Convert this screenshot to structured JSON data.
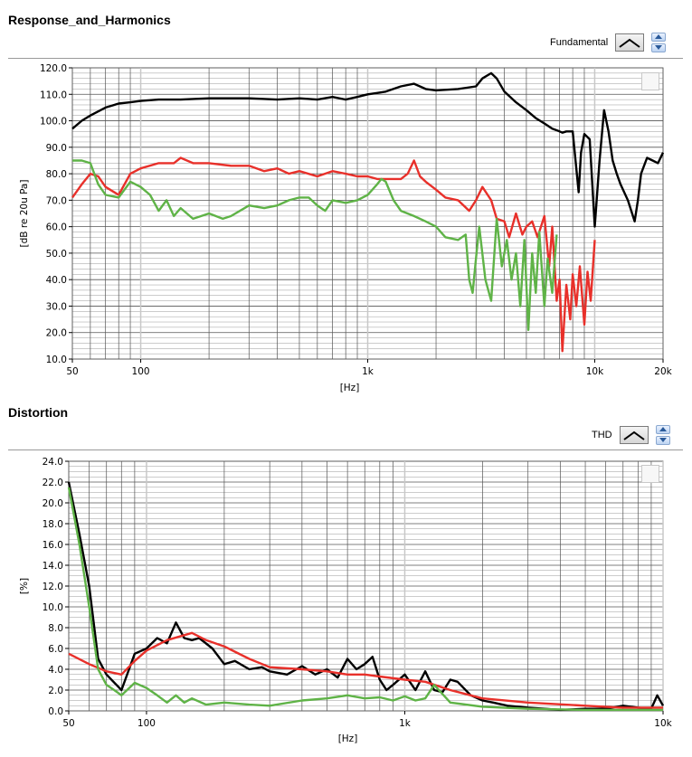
{
  "sections": [
    {
      "title": "Response_and_Harmonics",
      "legend_label": "Fundamental"
    },
    {
      "title": "Distortion",
      "legend_label": "THD"
    }
  ],
  "chart_data": [
    {
      "type": "line",
      "title": "Response_and_Harmonics",
      "xlabel": "[Hz]",
      "ylabel": "[dB re 20u Pa]",
      "xscale": "log",
      "xlim": [
        50,
        20000
      ],
      "ylim": [
        10,
        120
      ],
      "y_ticks": [
        "120.0",
        "110.0",
        "100.0",
        "90.0",
        "80.0",
        "70.0",
        "60.0",
        "50.0",
        "40.0",
        "30.0",
        "20.0",
        "10.0"
      ],
      "x_ticks": [
        "50",
        "100",
        "1k",
        "10k",
        "20k"
      ],
      "grid": true,
      "legend": "Fundamental",
      "series": [
        {
          "color": "#000000",
          "x": [
            50,
            55,
            60,
            70,
            80,
            90,
            100,
            120,
            150,
            200,
            300,
            400,
            500,
            600,
            700,
            800,
            900,
            1000,
            1100,
            1200,
            1400,
            1600,
            1800,
            2000,
            2500,
            3000,
            3200,
            3500,
            3700,
            4000,
            4500,
            5000,
            5500,
            6000,
            6500,
            7000,
            7200,
            7500,
            8000,
            8500,
            8700,
            9000,
            9500,
            10000,
            10500,
            11000,
            11500,
            12000,
            12500,
            13000,
            14000,
            15000,
            15500,
            16000,
            17000,
            18000,
            19000,
            20000
          ],
          "y": [
            97,
            100,
            102,
            105,
            106.5,
            107,
            107.5,
            108,
            108,
            108.5,
            108.5,
            108,
            108.5,
            108,
            109,
            108,
            109,
            110,
            110.5,
            111,
            113,
            114,
            112,
            111.5,
            112,
            113,
            116,
            118,
            116,
            111,
            107,
            104,
            101,
            99,
            97,
            96,
            95.5,
            96,
            96,
            73,
            88,
            95,
            93,
            60,
            85,
            104,
            96,
            85,
            80,
            76,
            70,
            62,
            70,
            80,
            86,
            85,
            84,
            88
          ]
        },
        {
          "color": "#e8302a",
          "x": [
            50,
            55,
            60,
            65,
            70,
            80,
            90,
            100,
            120,
            140,
            150,
            170,
            200,
            250,
            300,
            350,
            400,
            450,
            500,
            600,
            700,
            800,
            900,
            1000,
            1100,
            1200,
            1400,
            1500,
            1600,
            1700,
            1800,
            2000,
            2200,
            2500,
            2800,
            3000,
            3200,
            3500,
            3700,
            4000,
            4200,
            4500,
            4800,
            5000,
            5300,
            5600,
            6000,
            6300,
            6500,
            6800,
            7000,
            7200,
            7500,
            7800,
            8000,
            8300,
            8600,
            9000,
            9300,
            9600,
            10000
          ],
          "y": [
            71,
            76,
            80,
            79,
            75,
            72,
            80,
            82,
            84,
            84,
            86,
            84,
            84,
            83,
            83,
            81,
            82,
            80,
            81,
            79,
            81,
            80,
            79,
            79,
            78,
            78,
            78,
            80,
            85,
            79,
            77,
            74,
            71,
            70,
            66,
            70,
            75,
            70,
            63,
            62,
            56,
            65,
            57,
            60,
            62,
            56,
            64,
            45,
            60,
            32,
            40,
            13,
            38,
            25,
            42,
            30,
            45,
            23,
            43,
            32,
            55
          ]
        },
        {
          "color": "#5fb347",
          "x": [
            50,
            55,
            60,
            65,
            70,
            80,
            90,
            100,
            110,
            120,
            130,
            140,
            150,
            170,
            200,
            230,
            250,
            300,
            350,
            400,
            450,
            500,
            550,
            600,
            650,
            700,
            800,
            900,
            1000,
            1100,
            1150,
            1200,
            1300,
            1400,
            1600,
            1800,
            2000,
            2200,
            2500,
            2700,
            2800,
            2900,
            3000,
            3100,
            3300,
            3500,
            3700,
            3900,
            4100,
            4300,
            4500,
            4700,
            4900,
            5100,
            5300,
            5500,
            5700,
            6000,
            6200,
            6500,
            6800
          ],
          "y": [
            85,
            85,
            84,
            76,
            72,
            71,
            77,
            75,
            72,
            66,
            70,
            64,
            67,
            63,
            65,
            63,
            64,
            68,
            67,
            68,
            70,
            71,
            71,
            68,
            66,
            70,
            69,
            70,
            72,
            76,
            78,
            77,
            70,
            66,
            64,
            62,
            60,
            56,
            55,
            57,
            40,
            35,
            48,
            60,
            40,
            32,
            63,
            45,
            55,
            40,
            50,
            30,
            55,
            21,
            50,
            35,
            58,
            30,
            48,
            35,
            57
          ]
        }
      ]
    },
    {
      "type": "line",
      "title": "Distortion",
      "xlabel": "[Hz]",
      "ylabel": "[%]",
      "xscale": "log",
      "xlim": [
        50,
        10000
      ],
      "ylim": [
        0,
        24
      ],
      "y_ticks": [
        "24.0",
        "22.0",
        "20.0",
        "18.0",
        "16.0",
        "14.0",
        "12.0",
        "10.0",
        "8.0",
        "6.0",
        "4.0",
        "2.0",
        "0.0"
      ],
      "x_ticks": [
        "50",
        "100",
        "1k",
        "10k"
      ],
      "grid": true,
      "legend": "THD",
      "series": [
        {
          "color": "#000000",
          "x": [
            50,
            55,
            60,
            65,
            70,
            80,
            90,
            100,
            110,
            120,
            130,
            140,
            150,
            160,
            180,
            200,
            220,
            250,
            280,
            300,
            350,
            400,
            450,
            500,
            550,
            600,
            650,
            700,
            750,
            800,
            850,
            900,
            1000,
            1100,
            1200,
            1300,
            1400,
            1500,
            1600,
            1800,
            2000,
            2200,
            2500,
            3000,
            3500,
            4000,
            5000,
            6000,
            7000,
            8000,
            9000,
            9500,
            10000
          ],
          "y": [
            22,
            17,
            12,
            5,
            3.5,
            2,
            5.5,
            6,
            7,
            6.5,
            8.5,
            7,
            6.8,
            7,
            6,
            4.5,
            4.8,
            4,
            4.2,
            3.8,
            3.5,
            4.3,
            3.5,
            4,
            3.2,
            5,
            4,
            4.5,
            5.2,
            3,
            2,
            2.5,
            3.5,
            2,
            3.8,
            2,
            1.8,
            3,
            2.8,
            1.5,
            1,
            0.8,
            0.5,
            0.3,
            0.2,
            0.1,
            0.2,
            0.2,
            0.5,
            0.3,
            0.2,
            1.5,
            0.5
          ]
        },
        {
          "color": "#e8302a",
          "x": [
            50,
            60,
            70,
            80,
            90,
            100,
            120,
            150,
            170,
            200,
            250,
            300,
            400,
            500,
            600,
            700,
            800,
            1000,
            1200,
            1500,
            2000,
            3000,
            5000,
            7000,
            10000
          ],
          "y": [
            5.5,
            4.5,
            3.8,
            3.5,
            4.8,
            5.8,
            6.8,
            7.5,
            6.8,
            6.2,
            5,
            4.2,
            4,
            3.8,
            3.5,
            3.5,
            3.3,
            3,
            2.8,
            2,
            1.2,
            0.8,
            0.5,
            0.3,
            0.3
          ]
        },
        {
          "color": "#5fb347",
          "x": [
            50,
            55,
            60,
            65,
            70,
            75,
            80,
            90,
            100,
            110,
            120,
            130,
            140,
            150,
            170,
            200,
            250,
            300,
            400,
            500,
            600,
            700,
            800,
            900,
            1000,
            1100,
            1200,
            1300,
            1500,
            2000,
            3000,
            5000,
            7000,
            10000
          ],
          "y": [
            21.5,
            16,
            10,
            4,
            2.5,
            2,
            1.5,
            2.7,
            2.2,
            1.5,
            0.8,
            1.5,
            0.8,
            1.2,
            0.6,
            0.8,
            0.6,
            0.5,
            1,
            1.2,
            1.5,
            1.2,
            1.3,
            1,
            1.4,
            1,
            1.2,
            2.5,
            0.8,
            0.4,
            0.2,
            0.1,
            0.1,
            0.1
          ]
        }
      ]
    }
  ]
}
